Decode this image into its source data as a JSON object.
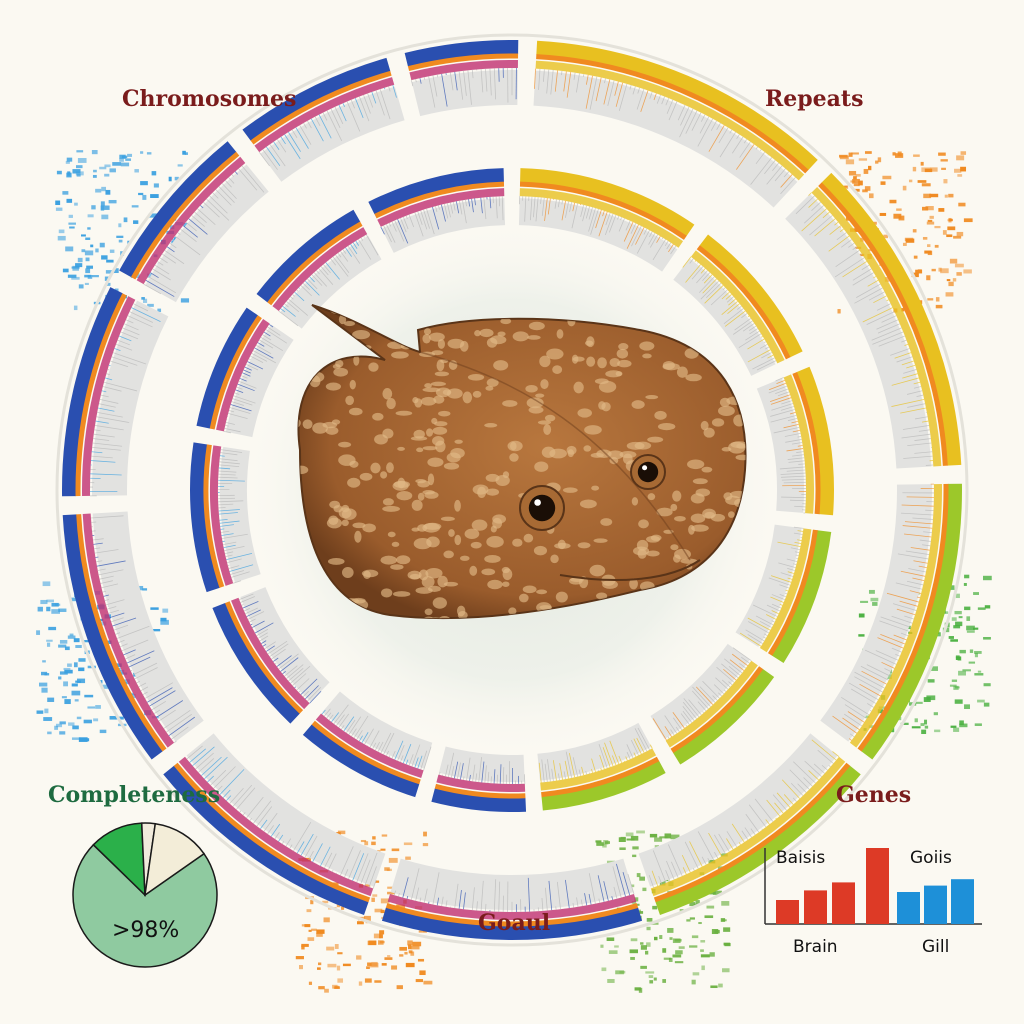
{
  "labels": {
    "chromosomes": "Chromosomes",
    "repeats": "Repeats",
    "genes": "Genes",
    "goaul": "Goaul",
    "completeness": "Completeness"
  },
  "completeness": {
    "value_label": ">98%",
    "slices": [
      {
        "fraction": 0.72,
        "color": "#8fcaa0"
      },
      {
        "fraction": 0.12,
        "color": "#2bb04a"
      },
      {
        "fraction": 0.03,
        "color": "#f1ebdc"
      },
      {
        "fraction": 0.13,
        "color": "#f3edd8"
      }
    ]
  },
  "expression_chart": {
    "group_labels_top": [
      "Baisis",
      "Goiis"
    ],
    "group_labels_bottom": [
      "Brain",
      "Gill"
    ],
    "groups": [
      {
        "color": "#dd3a26",
        "values": [
          0.3,
          0.42,
          0.52,
          0.95
        ]
      },
      {
        "color": "#1e90d8",
        "values": [
          0.4,
          0.48,
          0.56
        ]
      }
    ]
  },
  "ring_colors": {
    "left": [
      "#2a4fb0",
      "#3aa0e0",
      "#f08a20",
      "#c03070"
    ],
    "right": [
      "#f08a20",
      "#e8c020",
      "#9cc82a",
      "#3aaa3a"
    ]
  },
  "center_image": "stingray-illustration"
}
